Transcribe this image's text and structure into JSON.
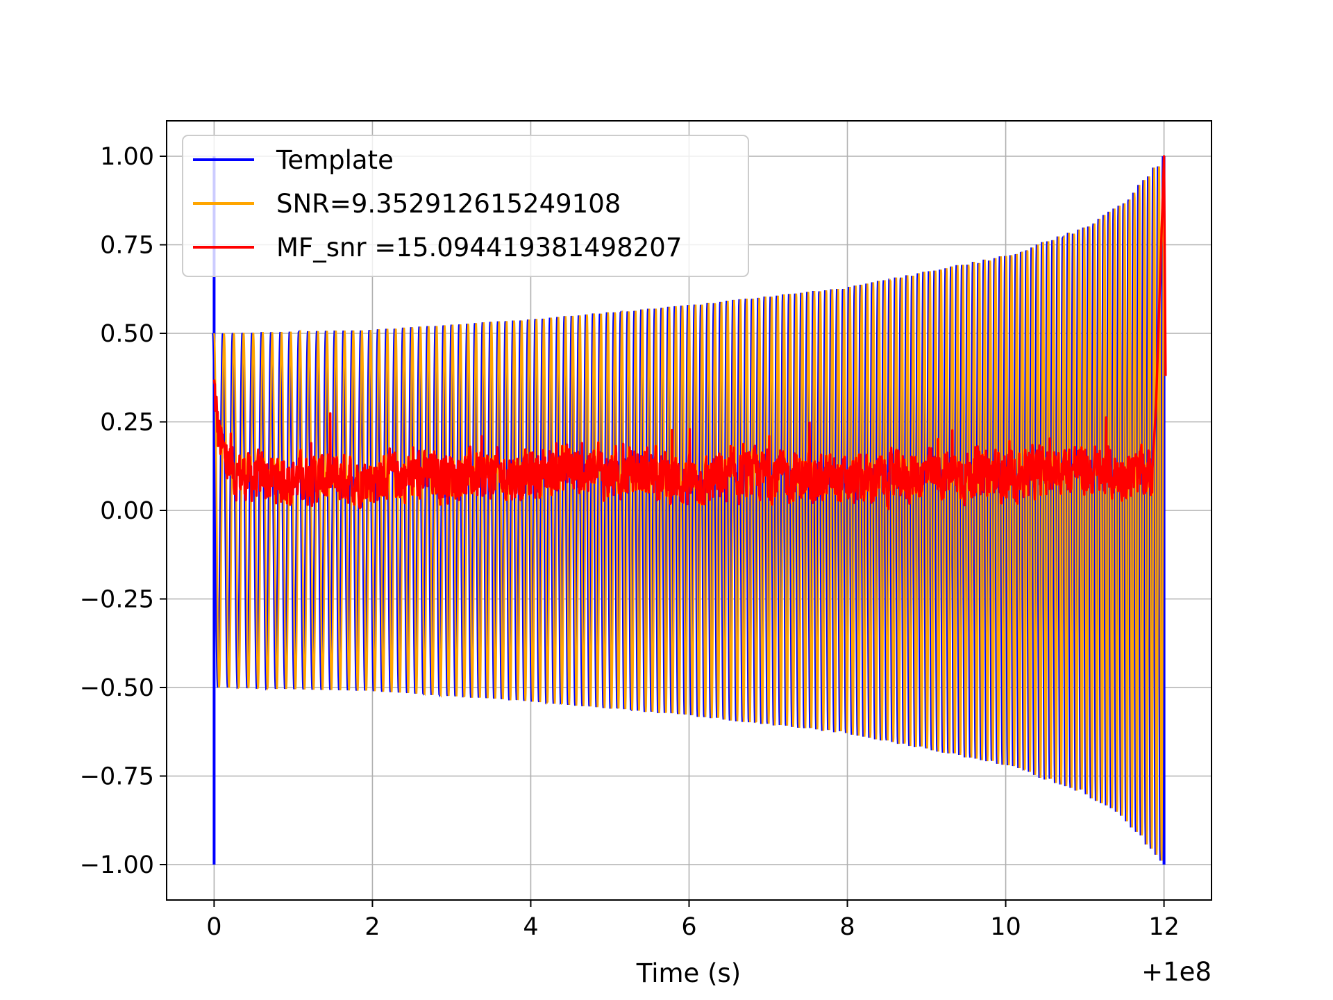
{
  "chart_data": {
    "type": "line",
    "title": "",
    "xlabel": "Time (s)",
    "ylabel": "",
    "x_offset_label": "+1e8",
    "xlim": [
      -0.6,
      12.6
    ],
    "ylim": [
      -1.1,
      1.1
    ],
    "xticks": [
      0,
      2,
      4,
      6,
      8,
      10,
      12
    ],
    "xtick_labels": [
      "0",
      "2",
      "4",
      "6",
      "8",
      "10",
      "12"
    ],
    "yticks": [
      1.0,
      0.75,
      0.5,
      0.25,
      0.0,
      -0.25,
      -0.5,
      -0.75,
      -1.0
    ],
    "ytick_labels": [
      "1.00",
      "0.75",
      "0.50",
      "0.25",
      "0.00",
      "−0.25",
      "−0.50",
      "−0.75",
      "−1.00"
    ],
    "grid": true,
    "legend_position": "top-left",
    "series": [
      {
        "name": "Template",
        "color": "#0000ff",
        "kind": "chirp-with-spikes",
        "envelope": [
          [
            0,
            0.5
          ],
          [
            2,
            0.51
          ],
          [
            4,
            0.54
          ],
          [
            6,
            0.58
          ],
          [
            8,
            0.63
          ],
          [
            10,
            0.72
          ],
          [
            11,
            0.8
          ],
          [
            11.5,
            0.87
          ],
          [
            12,
            1.0
          ]
        ],
        "spike_times": [
          0.0,
          12.0
        ],
        "spike_range": [
          -1.0,
          1.0
        ]
      },
      {
        "name": "SNR=9.352912615249108",
        "color": "#ffa500",
        "kind": "chirp",
        "x_range": [
          0,
          12
        ],
        "envelope": [
          [
            0,
            0.5
          ],
          [
            2,
            0.51
          ],
          [
            4,
            0.54
          ],
          [
            6,
            0.58
          ],
          [
            8,
            0.63
          ],
          [
            10,
            0.72
          ],
          [
            11,
            0.8
          ],
          [
            11.5,
            0.87
          ],
          [
            12,
            1.0
          ]
        ],
        "cycles_first_half": 60,
        "cycles_total": 145
      },
      {
        "name": "MF_snr =15.094419381498207",
        "color": "#ff0000",
        "kind": "noisy",
        "x": [
          0.0,
          0.02,
          0.05,
          0.1,
          0.15,
          0.2,
          0.3,
          0.5,
          1,
          2,
          3,
          4,
          4.4,
          5,
          5.4,
          6,
          7,
          8,
          9,
          10,
          10.9,
          11,
          11.5,
          11.85,
          11.9,
          11.95,
          12.0,
          12.02
        ],
        "y": [
          0.35,
          0.3,
          0.22,
          0.17,
          0.14,
          0.12,
          0.1,
          0.09,
          0.09,
          0.09,
          0.1,
          0.1,
          0.12,
          0.1,
          0.11,
          0.08,
          0.1,
          0.08,
          0.1,
          0.1,
          0.12,
          0.11,
          0.1,
          0.1,
          0.3,
          0.65,
          1.0,
          0.38
        ],
        "noise_amplitude": 0.07,
        "y_min": 0.0
      }
    ]
  }
}
